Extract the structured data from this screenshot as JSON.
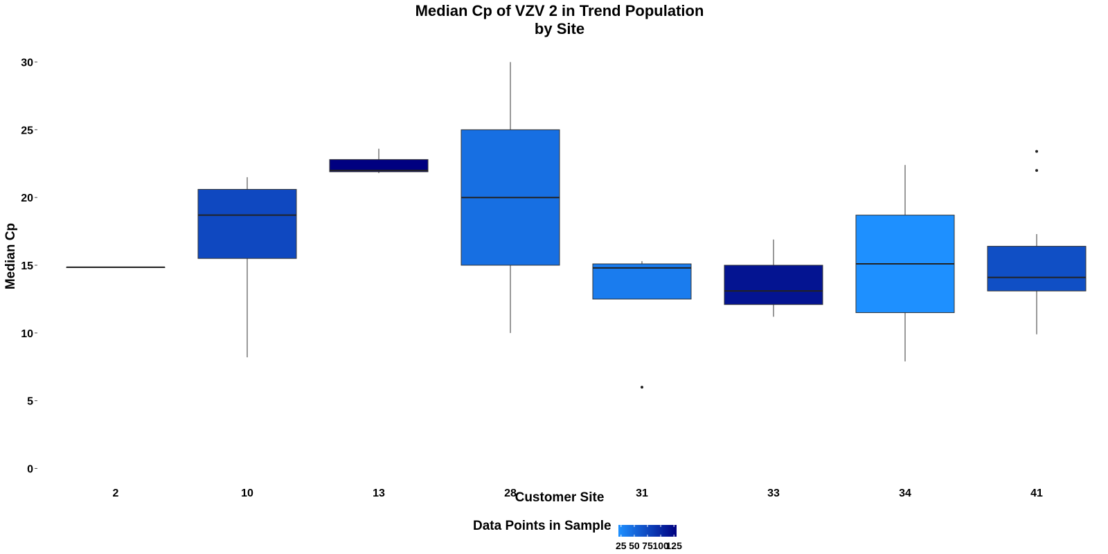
{
  "chart_data": {
    "type": "boxplot",
    "title": "Median Cp of VZV 2 in Trend Population",
    "subtitle": "by Site",
    "xlabel": "Customer Site",
    "ylabel": "Median Cp",
    "ylim": [
      -1,
      31
    ],
    "yticks": [
      0,
      5,
      10,
      15,
      20,
      25,
      30
    ],
    "grid": false,
    "categories": [
      "2",
      "10",
      "13",
      "28",
      "31",
      "33",
      "34",
      "41"
    ],
    "boxes": [
      {
        "site": "2",
        "min": 14.85,
        "q1": 14.85,
        "median": 14.85,
        "q3": 14.85,
        "max": 14.85,
        "outliers": [],
        "n": 45
      },
      {
        "site": "10",
        "min": 8.2,
        "q1": 15.5,
        "median": 18.7,
        "q3": 20.6,
        "max": 21.5,
        "outliers": [],
        "n": 75
      },
      {
        "site": "13",
        "min": 21.8,
        "q1": 21.9,
        "median": 22.0,
        "q3": 22.8,
        "max": 23.6,
        "outliers": [],
        "n": 130
      },
      {
        "site": "28",
        "min": 10.0,
        "q1": 15.0,
        "median": 20.0,
        "q3": 25.0,
        "max": 30.0,
        "outliers": [],
        "n": 45
      },
      {
        "site": "31",
        "min": 12.5,
        "q1": 12.5,
        "median": 14.8,
        "q3": 15.1,
        "max": 15.3,
        "outliers": [
          6.0
        ],
        "n": 35
      },
      {
        "site": "33",
        "min": 11.2,
        "q1": 12.1,
        "median": 13.1,
        "q3": 15.0,
        "max": 16.9,
        "outliers": [],
        "n": 115
      },
      {
        "site": "34",
        "min": 7.9,
        "q1": 11.5,
        "median": 15.1,
        "q3": 18.7,
        "max": 22.4,
        "outliers": [],
        "n": 20
      },
      {
        "site": "41",
        "min": 9.9,
        "q1": 13.1,
        "median": 14.1,
        "q3": 16.4,
        "max": 17.3,
        "outliers": [
          22.0,
          23.4
        ],
        "n": 70
      }
    ],
    "legend": {
      "title": "Data Points in Sample",
      "position": "bottom",
      "ticks": [
        "25",
        "50",
        "75",
        "100",
        "125"
      ],
      "tick_values": [
        25,
        50,
        75,
        100,
        125
      ],
      "range": [
        20,
        130
      ],
      "low_color": "#1e90ff",
      "high_color": "#000080"
    }
  }
}
